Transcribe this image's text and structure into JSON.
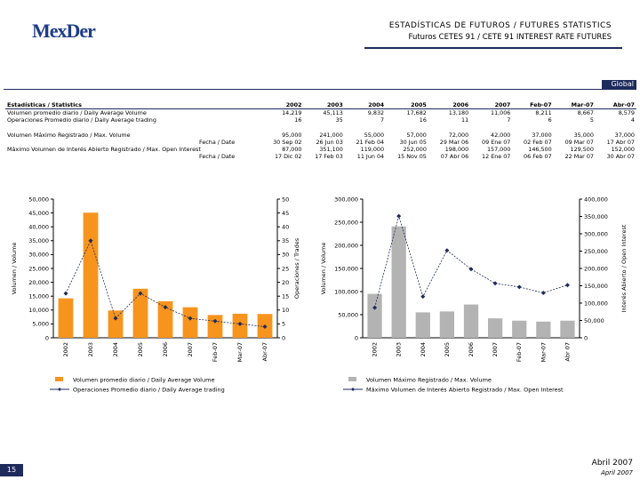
{
  "header": {
    "logo": "MexDer",
    "title": "ESTADÍSTICAS DE FUTUROS / FUTURES STATISTICS",
    "subtitle": "Futuros CETES 91 / CETE 91 INTEREST RATE FUTURES",
    "tab": "Global"
  },
  "table": {
    "columns": [
      "Estadísticas / Statistics",
      "2002",
      "2003",
      "2004",
      "2005",
      "2006",
      "2007",
      "Feb-07",
      "Mar-07",
      "Abr-07"
    ],
    "rows": [
      [
        "Volumen promedio diario / Daily Average Volume",
        "14,219",
        "45,113",
        "9,832",
        "17,682",
        "13,180",
        "11,006",
        "8,211",
        "8,667",
        "8,579"
      ],
      [
        "Operaciones Promedio diario / Daily Average trading",
        "16",
        "35",
        "7",
        "16",
        "11",
        "7",
        "6",
        "5",
        "4"
      ],
      [
        "Volumen Máximo Registrado / Max. Volume",
        "95,000",
        "241,000",
        "55,000",
        "57,000",
        "72,000",
        "42,000",
        "37,000",
        "35,000",
        "37,000"
      ],
      [
        "Fecha / Date",
        "30 Sep 02",
        "26 Jun 03",
        "21 Feb 04",
        "30 Jun 05",
        "29 Mar 06",
        "09 Ene 07",
        "02 Feb 07",
        "09 Mar 07",
        "17 Abr 07"
      ],
      [
        "Máximo Volumen de Interés Abierto Registrado / Max. Open Interest",
        "87,000",
        "351,100",
        "119,000",
        "252,000",
        "198,000",
        "157,000",
        "146,500",
        "129,500",
        "152,000"
      ],
      [
        "Fecha / Date",
        "17 Dic 02",
        "17 Feb 03",
        "11 Jun 04",
        "15 Nov 05",
        "07 Abr 06",
        "12 Ene 07",
        "06 Feb 07",
        "22 Mar 07",
        "30 Abr 07"
      ]
    ]
  },
  "chart_data": [
    {
      "type": "bar",
      "categories": [
        "2002",
        "2003",
        "2004",
        "2005",
        "2006",
        "2007",
        "Feb-07",
        "Mar-07",
        "Abr-07"
      ],
      "ylabel": "Volumen / Volume",
      "y2label": "Operaciones / Trades",
      "ylim": [
        0,
        50000
      ],
      "yticks": [
        0,
        {
          "value": 5000,
          "label": "5,000"
        },
        {
          "value": 10000,
          "label": "10,000"
        },
        {
          "value": 15000,
          "label": "15,000"
        },
        {
          "value": 20000,
          "label": "20,000"
        },
        {
          "value": 25000,
          "label": "25,000"
        },
        {
          "value": 30000,
          "label": "30,000"
        },
        {
          "value": 35000,
          "label": "35,000"
        },
        {
          "value": 40000,
          "label": "40,000"
        },
        {
          "value": 45000,
          "label": "45,000"
        },
        {
          "value": 50000,
          "label": "50,000"
        }
      ],
      "y2lim": [
        0,
        50
      ],
      "y2ticks": [
        0,
        5,
        10,
        15,
        20,
        25,
        30,
        35,
        40,
        45,
        50
      ],
      "series": [
        {
          "name": "Volumen promedio diario / Daily Average Volume",
          "type": "bar",
          "color": "#f7941d",
          "values": [
            14219,
            45113,
            9832,
            17682,
            13180,
            11006,
            8211,
            8667,
            8579
          ]
        },
        {
          "name": "Operaciones Promedio diario / Daily Average trading",
          "type": "line",
          "axis": "y2",
          "color": "#1f2a5c",
          "values": [
            16,
            35,
            7,
            16,
            11,
            7,
            6,
            5,
            4
          ]
        }
      ]
    },
    {
      "type": "bar",
      "categories": [
        "2002",
        "2003",
        "2004",
        "2005",
        "2006",
        "2007",
        "Feb-07",
        "Mar-07",
        "Abr 07"
      ],
      "ylabel": "Volumen / Volume",
      "y2label": "Interés Abierto / Open Interest",
      "ylim": [
        0,
        300000
      ],
      "yticks": [
        0,
        {
          "value": 50000,
          "label": "50,000"
        },
        {
          "value": 100000,
          "label": "100,000"
        },
        {
          "value": 150000,
          "label": "150,000"
        },
        {
          "value": 200000,
          "label": "200,000"
        },
        {
          "value": 250000,
          "label": "250,000"
        },
        {
          "value": 300000,
          "label": "300,000"
        }
      ],
      "y2lim": [
        0,
        400000
      ],
      "y2ticks": [
        0,
        {
          "value": 50000,
          "label": "50,000"
        },
        {
          "value": 100000,
          "label": "100,000"
        },
        {
          "value": 150000,
          "label": "150,000"
        },
        {
          "value": 200000,
          "label": "200,000"
        },
        {
          "value": 250000,
          "label": "250,000"
        },
        {
          "value": 300000,
          "label": "300,000"
        },
        {
          "value": 350000,
          "label": "350,000"
        },
        {
          "value": 400000,
          "label": "400,000"
        }
      ],
      "series": [
        {
          "name": "Volumen Máximo Registrado / Max. Volume",
          "type": "bar",
          "color": "#b3b3b3",
          "values": [
            95000,
            241000,
            55000,
            57000,
            72000,
            42000,
            37000,
            35000,
            37000
          ]
        },
        {
          "name": "Máximo Volumen de Interés Abierto Registrado / Max. Open Interest",
          "type": "line",
          "axis": "y2",
          "color": "#1f2a5c",
          "values": [
            87000,
            351100,
            119000,
            252000,
            198000,
            157000,
            146500,
            129500,
            152000
          ]
        }
      ]
    }
  ],
  "footer": {
    "page": "15",
    "date_es": "Abril 2007",
    "date_en": "April 2007"
  }
}
